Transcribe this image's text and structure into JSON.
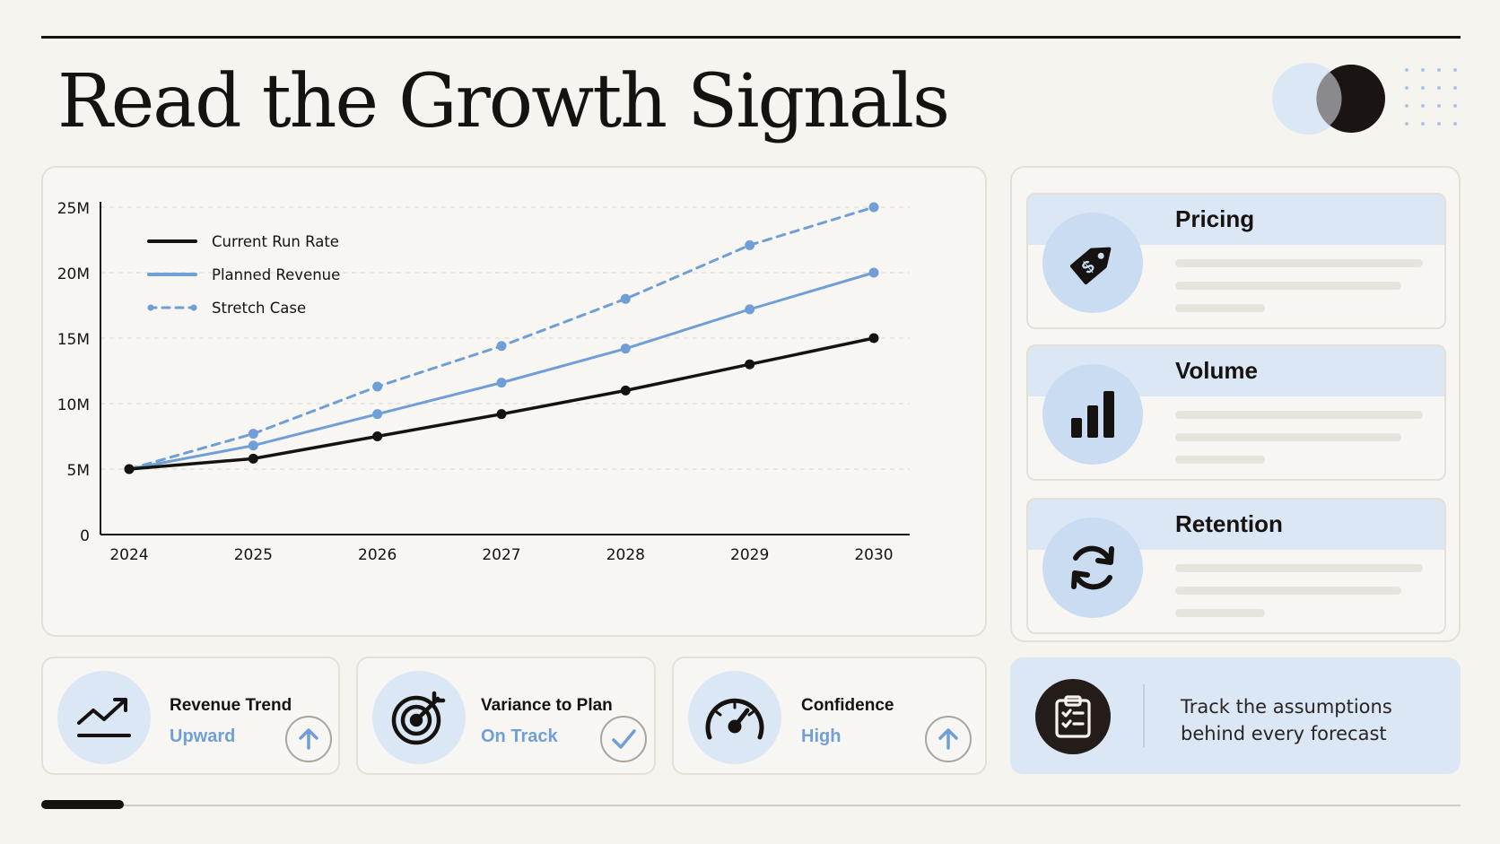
{
  "title": "Read the Growth Signals",
  "colors": {
    "ink": "#161210",
    "accent_blue": "#6f9fd6",
    "pale_blue": "#dce7f5",
    "background": "#f6f4ef"
  },
  "chart_data": {
    "type": "line",
    "title": "",
    "xlabel": "",
    "ylabel": "",
    "x": [
      2024,
      2025,
      2026,
      2027,
      2028,
      2029,
      2030
    ],
    "y_ticks": [
      "0",
      "5M",
      "10M",
      "15M",
      "20M",
      "25M"
    ],
    "ylim": [
      0,
      25
    ],
    "y_unit": "M",
    "grid": true,
    "legend_position": "top-left",
    "series": [
      {
        "name": "Current Run Rate",
        "values": [
          5,
          5.8,
          7.5,
          9.2,
          11,
          13,
          15
        ],
        "color": "#161210",
        "style": "solid"
      },
      {
        "name": "Planned Revenue",
        "values": [
          5,
          6.8,
          9.2,
          11.6,
          14.2,
          17.2,
          20
        ],
        "color": "#6f9fd6",
        "style": "solid"
      },
      {
        "name": "Stretch Case",
        "values": [
          5,
          7.7,
          11.3,
          14.4,
          18,
          22.1,
          25
        ],
        "color": "#6f9fd6",
        "style": "dashed"
      }
    ]
  },
  "factors": [
    {
      "title": "Pricing",
      "icon": "price-tag-icon"
    },
    {
      "title": "Volume",
      "icon": "bar-chart-icon"
    },
    {
      "title": "Retention",
      "icon": "refresh-cycle-icon"
    }
  ],
  "kpis": [
    {
      "label": "Revenue Trend",
      "value": "Upward",
      "icon": "trend-up-icon",
      "badge": "arrow-up-icon"
    },
    {
      "label": "Variance to Plan",
      "value": "On Track",
      "icon": "target-icon",
      "badge": "checkmark-icon"
    },
    {
      "label": "Confidence",
      "value": "High",
      "icon": "gauge-icon",
      "badge": "arrow-up-icon"
    }
  ],
  "note": {
    "text": "Track the assumptions behind every forecast",
    "icon": "clipboard-checklist-icon"
  },
  "progress": {
    "fraction": 0.058
  }
}
